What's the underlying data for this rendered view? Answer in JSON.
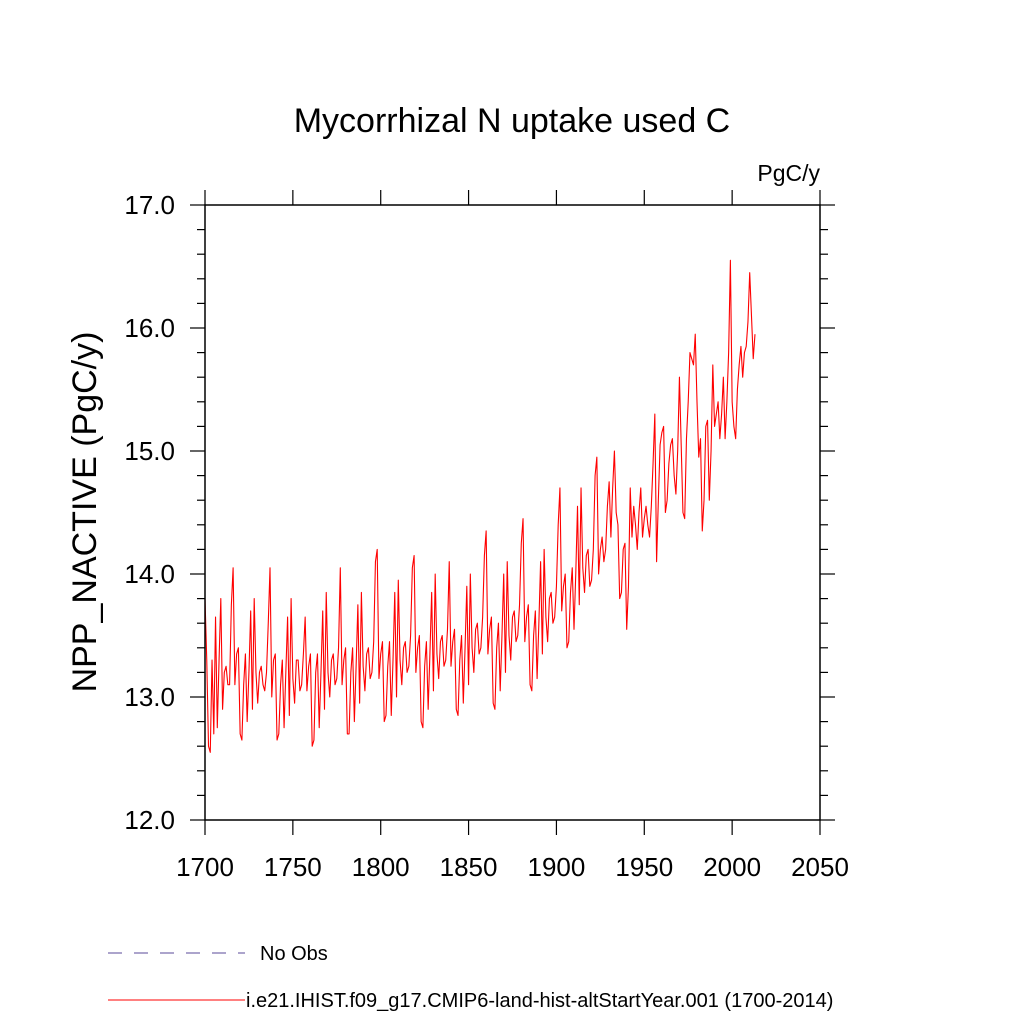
{
  "chart_data": {
    "type": "line",
    "title": "Mycorrhizal N uptake used C",
    "units_label": "PgC/y",
    "ylabel": "NPP_NACTIVE  (PgC/y)",
    "xlabel": "",
    "xlim": [
      1700,
      2050
    ],
    "ylim": [
      12.0,
      17.0
    ],
    "x_ticks": [
      1700,
      1750,
      1800,
      1850,
      1900,
      1950,
      2000,
      2050
    ],
    "x_tick_labels": [
      "1700",
      "1750",
      "1800",
      "1850",
      "1900",
      "1950",
      "2000",
      "2050"
    ],
    "y_ticks": [
      12.0,
      13.0,
      14.0,
      15.0,
      16.0,
      17.0
    ],
    "y_tick_labels": [
      "12.0",
      "13.0",
      "14.0",
      "15.0",
      "16.0",
      "17.0"
    ],
    "grid": false,
    "legend_position": "bottom-left",
    "series": [
      {
        "name": "i.e21.IHIST.f09_g17.CMIP6-land-hist-altStartYear.001 (1700-2014)",
        "color": "#ff0000",
        "style": "solid",
        "x_start": 1700,
        "x_step": 1,
        "values": [
          13.8,
          13.3,
          12.6,
          12.55,
          13.3,
          12.7,
          13.65,
          12.75,
          13.3,
          13.8,
          12.9,
          13.2,
          13.25,
          13.1,
          13.1,
          13.75,
          14.05,
          13.1,
          13.35,
          13.4,
          12.7,
          12.65,
          13.1,
          13.35,
          12.8,
          13.2,
          13.7,
          12.9,
          13.8,
          13.2,
          12.95,
          13.2,
          13.25,
          13.1,
          13.05,
          13.2,
          13.6,
          14.05,
          13.0,
          13.3,
          13.35,
          12.65,
          12.7,
          13.1,
          13.3,
          12.75,
          13.2,
          13.65,
          12.85,
          13.8,
          13.15,
          12.95,
          13.3,
          13.3,
          13.05,
          13.1,
          13.35,
          13.65,
          13.05,
          13.25,
          13.35,
          12.6,
          12.65,
          13.2,
          13.35,
          12.75,
          13.2,
          13.7,
          12.9,
          13.85,
          13.2,
          13.0,
          13.3,
          13.35,
          13.1,
          13.15,
          13.4,
          14.05,
          13.1,
          13.3,
          13.4,
          12.7,
          12.7,
          13.2,
          13.4,
          12.8,
          13.25,
          13.75,
          12.95,
          13.85,
          13.25,
          13.05,
          13.35,
          13.4,
          13.15,
          13.2,
          13.45,
          14.1,
          14.2,
          13.15,
          13.35,
          13.45,
          12.8,
          12.85,
          13.25,
          13.45,
          12.85,
          13.3,
          13.85,
          13.0,
          13.95,
          13.3,
          13.1,
          13.4,
          13.45,
          13.2,
          13.25,
          13.5,
          14.05,
          14.15,
          13.2,
          13.4,
          13.5,
          12.8,
          12.75,
          13.25,
          13.45,
          12.9,
          13.35,
          13.85,
          13.05,
          14.0,
          13.35,
          13.15,
          13.45,
          13.5,
          13.25,
          13.3,
          13.55,
          14.1,
          13.25,
          13.45,
          13.55,
          12.9,
          12.85,
          13.3,
          13.5,
          12.95,
          13.4,
          13.9,
          13.1,
          14.0,
          13.4,
          13.2,
          13.55,
          13.6,
          13.35,
          13.4,
          13.65,
          14.15,
          14.35,
          13.35,
          13.55,
          13.65,
          12.95,
          12.9,
          13.4,
          13.6,
          13.05,
          13.5,
          14.0,
          13.2,
          14.1,
          13.5,
          13.3,
          13.65,
          13.7,
          13.45,
          13.5,
          13.75,
          14.25,
          14.45,
          13.45,
          13.65,
          13.75,
          13.1,
          13.05,
          13.5,
          13.7,
          13.15,
          13.6,
          14.1,
          13.35,
          14.2,
          13.65,
          13.45,
          13.8,
          13.85,
          13.6,
          13.65,
          13.9,
          14.4,
          14.7,
          13.7,
          13.9,
          14.0,
          13.4,
          13.45,
          13.85,
          14.05,
          13.55,
          14.0,
          14.55,
          13.75,
          14.7,
          14.05,
          13.85,
          14.15,
          14.2,
          13.9,
          13.95,
          14.2,
          14.8,
          14.95,
          14.0,
          14.2,
          14.3,
          14.1,
          14.2,
          14.55,
          14.75,
          14.3,
          14.7,
          15.0,
          14.5,
          14.4,
          13.8,
          13.85,
          14.2,
          14.25,
          13.55,
          13.9,
          14.7,
          14.3,
          14.55,
          14.4,
          14.2,
          14.5,
          14.7,
          14.3,
          14.45,
          14.55,
          14.4,
          14.3,
          14.55,
          14.9,
          15.3,
          14.1,
          14.6,
          15.05,
          15.15,
          15.2,
          14.5,
          14.6,
          14.9,
          15.05,
          15.1,
          14.8,
          14.65,
          15.0,
          15.6,
          15.05,
          14.5,
          14.45,
          15.1,
          15.4,
          15.8,
          15.75,
          15.7,
          15.95,
          15.4,
          14.95,
          15.1,
          14.35,
          14.6,
          15.2,
          15.25,
          14.6,
          15.0,
          15.7,
          15.2,
          15.3,
          15.4,
          15.1,
          15.3,
          15.6,
          15.1,
          15.4,
          15.8,
          16.55,
          15.4,
          15.2,
          15.1,
          15.5,
          15.7,
          15.85,
          15.6,
          15.8,
          15.85,
          16.05,
          16.45,
          16.1,
          15.75,
          15.95
        ]
      },
      {
        "name": "No Obs",
        "color": "#5a4a9a",
        "style": "dashed",
        "values": []
      }
    ]
  }
}
